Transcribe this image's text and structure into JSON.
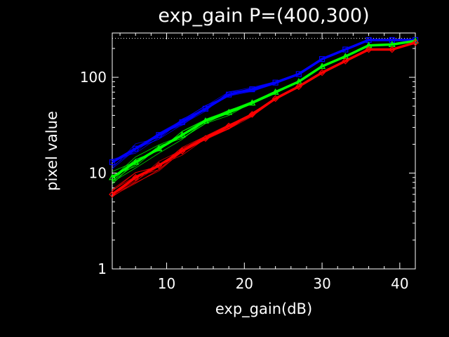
{
  "chart_data": {
    "type": "line",
    "title": "exp_gain  P=(400,300)",
    "xlabel": "exp_gain(dB)",
    "ylabel": "pixel value",
    "xlim": [
      3,
      42
    ],
    "ylim": [
      1,
      290
    ],
    "y_scale": "log",
    "x_ticks": [
      10,
      20,
      30,
      40
    ],
    "y_ticks": [
      1,
      10,
      100
    ],
    "x_tick_labels": [
      "10",
      "20",
      "30",
      "40"
    ],
    "y_tick_labels": [
      "1",
      "10",
      "100"
    ],
    "saturation_line": 255,
    "colors": {
      "blue": "#0000ff",
      "green": "#00ff00",
      "red": "#ff0000",
      "axes": "#ffffff",
      "background": "#000000"
    },
    "x": [
      3,
      6,
      9,
      12,
      15,
      18,
      21,
      24,
      27,
      30,
      33,
      36,
      39,
      42
    ],
    "series": [
      {
        "color": "#0000ff",
        "marker": "square",
        "values": [
          13,
          18,
          25,
          34,
          47,
          66,
          75,
          88,
          108,
          155,
          195,
          245,
          245,
          245
        ]
      },
      {
        "color": "#00ff00",
        "marker": "triangle",
        "values": [
          9,
          13,
          18,
          25,
          35,
          43,
          54,
          70,
          90,
          130,
          165,
          215,
          220,
          240
        ]
      },
      {
        "color": "#ff0000",
        "marker": "diamond",
        "values": [
          6,
          9,
          12,
          17,
          23,
          31,
          41,
          60,
          80,
          112,
          148,
          195,
          195,
          230
        ]
      }
    ]
  }
}
